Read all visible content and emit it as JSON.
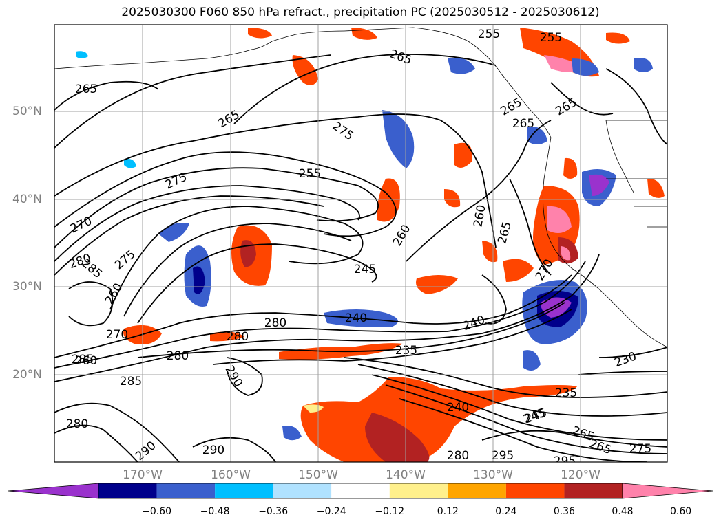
{
  "title": "2025030300 F060 850 hPa refract., precipitation PC (2025030512 - 2025030612)",
  "lat_labels": [
    "50°N",
    "40°N",
    "30°N",
    "20°N"
  ],
  "lon_labels": [
    "170°W",
    "160°W",
    "150°W",
    "140°W",
    "130°W",
    "120°W"
  ],
  "colorbar": {
    "ticks": [
      "−0.60",
      "−0.48",
      "−0.36",
      "−0.24",
      "−0.12",
      "0.12",
      "0.24",
      "0.36",
      "0.48",
      "0.60"
    ],
    "colors": [
      "#9a32cd",
      "#00008b",
      "#3a5fcd",
      "#00bfff",
      "#b0e2ff",
      "#ffffff",
      "#fff08c",
      "#ffa500",
      "#ff4500",
      "#b22222",
      "#ff82ab"
    ]
  },
  "contour_labels": [
    "265",
    "265",
    "265",
    "265",
    "275",
    "275",
    "270",
    "280",
    "285",
    "275",
    "260",
    "270",
    "260",
    "285",
    "285",
    "280",
    "290",
    "280",
    "290",
    "255",
    "260",
    "245",
    "260",
    "265",
    "270",
    "240",
    "280",
    "280",
    "235",
    "240",
    "245",
    "265",
    "230",
    "235",
    "240",
    "245",
    "265",
    "275",
    "280",
    "290",
    "295",
    "295",
    "255",
    "255",
    "265",
    "265"
  ]
}
